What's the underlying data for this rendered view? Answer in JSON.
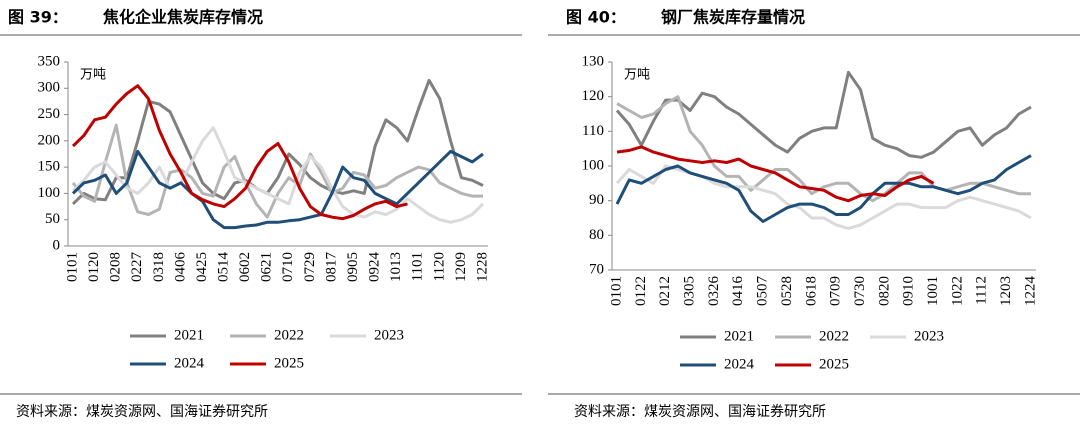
{
  "chart_data": [
    {
      "type": "line",
      "label": "图 39：",
      "title": "焦化企业焦炭库存情况",
      "unit": "万吨",
      "source": "资料来源：煤炭资源网、国海证券研究所",
      "categories": [
        "0101",
        null,
        "0120",
        null,
        "0208",
        null,
        "0227",
        null,
        "0318",
        null,
        "0406",
        null,
        "0425",
        null,
        "0514",
        null,
        "0602",
        null,
        "0621",
        null,
        "0710",
        null,
        "0729",
        null,
        "0817",
        null,
        "0905",
        null,
        "0924",
        null,
        "1013",
        null,
        "1101",
        null,
        "1120",
        null,
        "1209",
        null,
        "1228"
      ],
      "ylim": [
        0,
        350
      ],
      "yticks": [
        0,
        50,
        100,
        150,
        200,
        250,
        300,
        350
      ],
      "series": [
        {
          "name": "2021",
          "color": "#808080",
          "values": [
            80,
            100,
            90,
            88,
            130,
            130,
            200,
            275,
            270,
            255,
            210,
            165,
            120,
            100,
            90,
            120,
            125,
            110,
            100,
            130,
            175,
            155,
            130,
            115,
            105,
            100,
            105,
            100,
            190,
            240,
            225,
            200,
            260,
            315,
            280,
            200,
            130,
            125,
            115
          ]
        },
        {
          "name": "2022",
          "color": "#b4b4b4",
          "values": [
            120,
            95,
            85,
            160,
            230,
            120,
            65,
            60,
            70,
            140,
            145,
            130,
            100,
            95,
            150,
            170,
            120,
            80,
            55,
            100,
            130,
            115,
            175,
            140,
            100,
            110,
            140,
            135,
            110,
            115,
            130,
            140,
            150,
            145,
            120,
            110,
            100,
            95,
            95
          ]
        },
        {
          "name": "2023",
          "color": "#dadada",
          "values": [
            105,
            125,
            150,
            160,
            135,
            110,
            100,
            120,
            150,
            110,
            120,
            160,
            200,
            225,
            180,
            130,
            120,
            110,
            100,
            90,
            80,
            140,
            170,
            150,
            110,
            75,
            60,
            55,
            65,
            60,
            70,
            90,
            75,
            60,
            50,
            45,
            50,
            60,
            80
          ]
        },
        {
          "name": "2024",
          "color": "#1f4e79",
          "values": [
            100,
            120,
            125,
            135,
            100,
            120,
            180,
            150,
            120,
            110,
            120,
            100,
            85,
            50,
            35,
            35,
            38,
            40,
            45,
            45,
            48,
            50,
            55,
            60,
            100,
            150,
            130,
            125,
            100,
            90,
            80,
            100,
            120,
            140,
            160,
            180,
            170,
            160,
            175
          ]
        },
        {
          "name": "2025",
          "color": "#c00000",
          "values": [
            190,
            210,
            240,
            245,
            270,
            290,
            305,
            280,
            220,
            175,
            140,
            100,
            88,
            80,
            75,
            90,
            110,
            150,
            180,
            195,
            160,
            110,
            75,
            60,
            55,
            52,
            58,
            70,
            80,
            85,
            75,
            80,
            null,
            null,
            null,
            null,
            null,
            null,
            null
          ]
        }
      ]
    },
    {
      "type": "line",
      "label": "图 40：",
      "title": "钢厂焦炭库存量情况",
      "unit": "万吨",
      "source": "资料来源：煤炭资源网、国海证券研究所",
      "categories": [
        "0101",
        null,
        "0122",
        null,
        "0212",
        null,
        "0305",
        null,
        "0326",
        null,
        "0416",
        null,
        "0507",
        null,
        "0528",
        null,
        "0618",
        null,
        "0709",
        null,
        "0730",
        null,
        "0820",
        null,
        "0910",
        null,
        "1001",
        null,
        "1022",
        null,
        "1112",
        null,
        "1203",
        null,
        "1224"
      ],
      "ylim": [
        70,
        130
      ],
      "yticks": [
        70,
        80,
        90,
        100,
        110,
        120,
        130
      ],
      "series": [
        {
          "name": "2021",
          "color": "#808080",
          "values": [
            116,
            112,
            106,
            113,
            119,
            119,
            116,
            121,
            120,
            117,
            115,
            112,
            109,
            106,
            104,
            108,
            110,
            111,
            111,
            127,
            122,
            108,
            106,
            105,
            103,
            102.5,
            104,
            107,
            110,
            111,
            106,
            109,
            111,
            115,
            117
          ]
        },
        {
          "name": "2022",
          "color": "#b4b4b4",
          "values": [
            118,
            116,
            114,
            115,
            118,
            120,
            110,
            106,
            100,
            97,
            97,
            93,
            96,
            99,
            99,
            96,
            92,
            94,
            95,
            95,
            92,
            90,
            92,
            95,
            98,
            98,
            94,
            93,
            94,
            95,
            95,
            94,
            93,
            92,
            92
          ]
        },
        {
          "name": "2023",
          "color": "#dadada",
          "values": [
            95,
            99,
            97,
            95,
            100,
            99,
            98,
            97,
            95,
            94,
            94,
            94,
            93,
            92,
            89,
            88,
            85,
            85,
            83,
            82,
            83,
            85,
            87,
            89,
            89,
            88,
            88,
            88,
            90,
            91,
            90,
            89,
            88,
            87,
            85
          ]
        },
        {
          "name": "2024",
          "color": "#1f4e79",
          "values": [
            89,
            96,
            95,
            97,
            99,
            100,
            98,
            97,
            96,
            95,
            93,
            87,
            84,
            86,
            88,
            89,
            89,
            88,
            86,
            86,
            88,
            92,
            95,
            95,
            95,
            94,
            94,
            93,
            92,
            93,
            95,
            96,
            99,
            101,
            103
          ]
        },
        {
          "name": "2025",
          "color": "#c00000",
          "values": [
            104,
            104.5,
            105.5,
            104,
            103,
            102,
            101.5,
            101,
            101.5,
            101,
            102,
            100,
            99,
            98,
            96,
            94,
            93.5,
            93,
            91,
            90,
            91.5,
            92,
            91.5,
            94,
            96,
            97,
            95,
            null,
            null,
            null,
            null,
            null,
            null,
            null,
            null
          ]
        }
      ]
    }
  ]
}
